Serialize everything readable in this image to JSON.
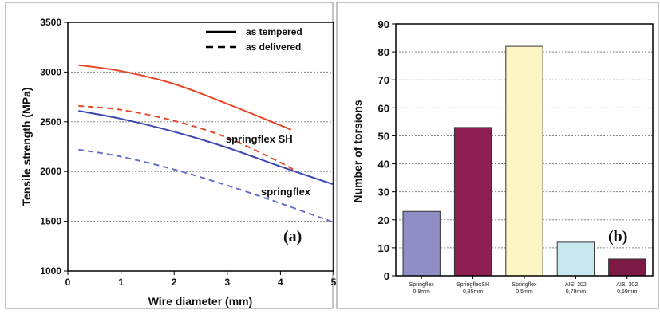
{
  "chart_data": [
    {
      "type": "line",
      "panel_label": "(a)",
      "xlabel": "Wire diameter (mm)",
      "ylabel": "Tensile strength (MPa)",
      "xlim": [
        0,
        5
      ],
      "ylim": [
        1000,
        3500
      ],
      "xticks": [
        "0",
        "1",
        "2",
        "3",
        "4",
        "5"
      ],
      "yticks": [
        "1000",
        "1500",
        "2000",
        "2500",
        "3000",
        "3500"
      ],
      "grid": "horizontal dotted",
      "legend": {
        "placement": "top-right",
        "entries": [
          {
            "label": "as tempered",
            "style": "solid"
          },
          {
            "label": "as delivered",
            "style": "dashed"
          }
        ]
      },
      "annotations": [
        {
          "text": "springflex SH",
          "color": "#e8482a",
          "at": [
            3.6,
            2290
          ]
        },
        {
          "text": "springflex",
          "color": "#3c46b0",
          "at": [
            4.1,
            1760
          ]
        }
      ],
      "series": [
        {
          "group": "springflex SH",
          "style": "solid",
          "color": "#e8482a",
          "x": [
            0.2,
            1,
            2,
            3,
            4.2
          ],
          "y": [
            3070,
            3010,
            2880,
            2680,
            2420
          ]
        },
        {
          "group": "springflex SH",
          "style": "dashed",
          "color": "#e8482a",
          "x": [
            0.2,
            1,
            2,
            3,
            4,
            4.3
          ],
          "y": [
            2660,
            2620,
            2510,
            2340,
            2090,
            2000
          ]
        },
        {
          "group": "springflex",
          "style": "solid",
          "color": "#3c46b0",
          "x": [
            0.2,
            1,
            2,
            3,
            4,
            5
          ],
          "y": [
            2610,
            2530,
            2400,
            2240,
            2050,
            1870
          ]
        },
        {
          "group": "springflex",
          "style": "dashed",
          "color": "#6670c8",
          "x": [
            0.2,
            1,
            2,
            3,
            4,
            5
          ],
          "y": [
            2220,
            2150,
            2020,
            1860,
            1680,
            1490
          ]
        }
      ]
    },
    {
      "type": "bar",
      "panel_label": "(b)",
      "ylabel": "Number of torsions",
      "ylim": [
        0,
        90
      ],
      "yticks": [
        "0",
        "10",
        "20",
        "30",
        "40",
        "50",
        "60",
        "70",
        "80",
        "90"
      ],
      "grid": "horizontal dotted",
      "categories": [
        [
          "Springflex",
          "0,8mm"
        ],
        [
          "SpringflexSH",
          "0,85mm"
        ],
        [
          "Springflex",
          "0,5mm"
        ],
        [
          "AISI 302",
          "0,79mm"
        ],
        [
          "AISI 302",
          "0,59mm"
        ]
      ],
      "values": [
        23,
        53,
        82,
        12,
        6
      ],
      "colors": [
        "#8f8fc6",
        "#8e1f52",
        "#fbf6c4",
        "#c8e8f0",
        "#7d1945"
      ]
    }
  ]
}
